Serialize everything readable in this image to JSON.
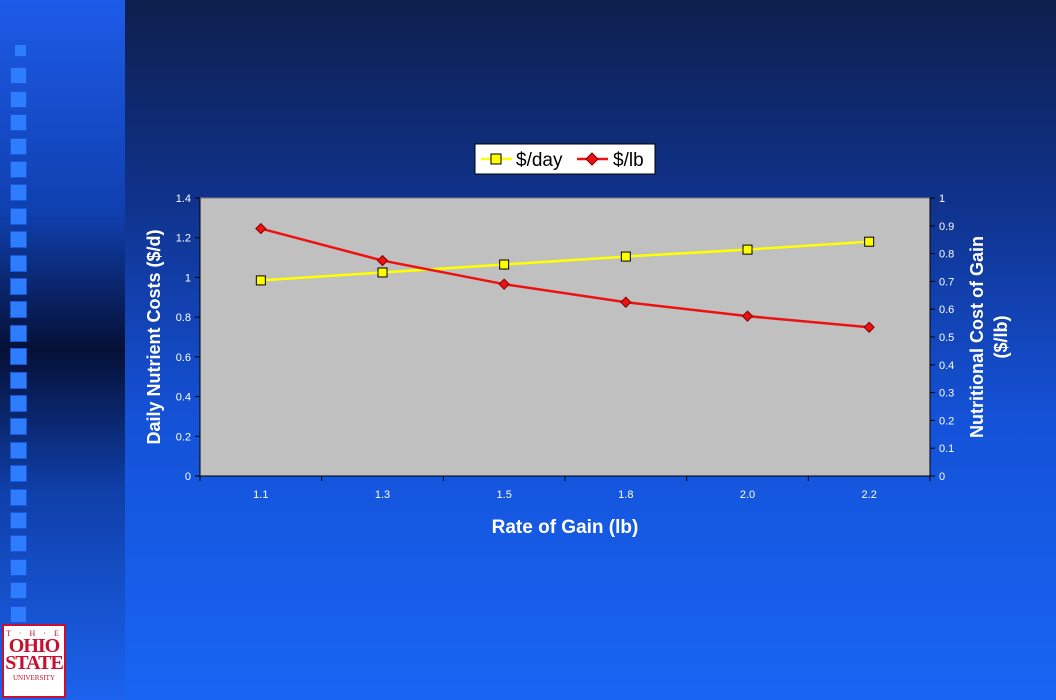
{
  "slide": {
    "logo": {
      "line1": "T · H · E",
      "line2a": "OHIO",
      "line2b": "STATE",
      "line3": "UNIVERSITY"
    }
  },
  "chart_data": {
    "type": "line",
    "categories": [
      "1.1",
      "1.3",
      "1.5",
      "1.8",
      "2.0",
      "2.2"
    ],
    "series": [
      {
        "name": "$/day",
        "axis": "left",
        "color": "#ffff00",
        "marker": "square",
        "values": [
          0.985,
          1.025,
          1.065,
          1.105,
          1.14,
          1.18
        ]
      },
      {
        "name": "$/lb",
        "axis": "right",
        "color": "#ee1111",
        "marker": "diamond",
        "values": [
          0.89,
          0.775,
          0.69,
          0.625,
          0.575,
          0.535
        ]
      }
    ],
    "xlabel": "Rate of Gain (lb)",
    "ylabel": "Daily Nutrient Costs ($/d)",
    "y2label_line1": "Nutritional Cost of Gain",
    "y2label_line2": "($/lb)",
    "ylim": [
      0,
      1.4
    ],
    "y2lim": [
      0,
      1
    ],
    "yticks": [
      "0",
      "0.2",
      "0.4",
      "0.6",
      "0.8",
      "1",
      "1.2",
      "1.4"
    ],
    "y2ticks": [
      "0",
      "0.1",
      "0.2",
      "0.3",
      "0.4",
      "0.5",
      "0.6",
      "0.7",
      "0.8",
      "0.9",
      "1"
    ],
    "legend_position": "top",
    "plot_background": "#c0c0c0",
    "grid": false
  }
}
